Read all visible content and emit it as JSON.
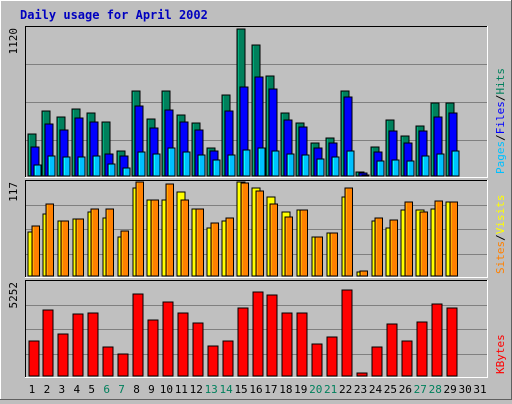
{
  "chart_data": {
    "type": "bar",
    "title": "Daily usage for April 2002",
    "categories": [
      "1",
      "2",
      "3",
      "4",
      "5",
      "6",
      "7",
      "8",
      "9",
      "10",
      "11",
      "12",
      "13",
      "14",
      "15",
      "16",
      "17",
      "18",
      "19",
      "20",
      "21",
      "22",
      "23",
      "24",
      "25",
      "26",
      "27",
      "28",
      "29",
      "30",
      "31"
    ],
    "weekend_days": [
      6,
      7,
      13,
      14,
      20,
      21,
      27,
      28
    ],
    "colors": {
      "title": "#0000c0",
      "weekday_label": "#000000",
      "weekend_label": "#00805c",
      "hits": "#00805c",
      "files": "#0000ff",
      "pages": "#00c0ff",
      "visits": "#ffff00",
      "sites": "#ff8000",
      "kbytes": "#ff0000",
      "plot_bg": "#c0c0c0",
      "grid": "#808080"
    },
    "panels": [
      {
        "id": "hits-files-pages",
        "max_label": "1120",
        "ymax": 1120,
        "legend": [
          {
            "text": "Hits",
            "color": "#00805c"
          },
          {
            "text": "/",
            "color": "#000000"
          },
          {
            "text": "Files",
            "color": "#0000ff"
          },
          {
            "text": "/",
            "color": "#000000"
          },
          {
            "text": "Pages",
            "color": "#00c0ff"
          }
        ],
        "series": [
          {
            "name": "Hits",
            "color": "#00805c",
            "values": [
              320,
              490,
              450,
              510,
              480,
              410,
              190,
              640,
              430,
              640,
              460,
              400,
              210,
              610,
              1110,
              990,
              760,
              480,
              400,
              250,
              290,
              640,
              30,
              220,
              420,
              300,
              380,
              550,
              550,
              0,
              0
            ]
          },
          {
            "name": "Files",
            "color": "#0000ff",
            "values": [
              220,
              390,
              350,
              440,
              410,
              170,
              150,
              530,
              360,
              500,
              410,
              350,
              190,
              490,
              670,
              750,
              660,
              420,
              370,
              210,
              250,
              600,
              25,
              180,
              340,
              250,
              340,
              450,
              480,
              0,
              0
            ]
          },
          {
            "name": "Pages",
            "color": "#00c0ff",
            "values": [
              80,
              150,
              140,
              140,
              150,
              90,
              60,
              180,
              170,
              210,
              180,
              160,
              120,
              160,
              200,
              210,
              190,
              170,
              160,
              130,
              140,
              190,
              10,
              110,
              120,
              110,
              150,
              170,
              190,
              0,
              0
            ]
          }
        ]
      },
      {
        "id": "visits-sites",
        "max_label": "117",
        "ymax": 117,
        "legend": [
          {
            "text": "Visits",
            "color": "#ffff00"
          },
          {
            "text": "/",
            "color": "#000000"
          },
          {
            "text": "Sites",
            "color": "#ff8000"
          }
        ],
        "series": [
          {
            "name": "Visits",
            "color": "#ffff00",
            "values": [
              55,
              77,
              68,
              71,
              80,
              72,
              48,
              110,
              94,
              94,
              104,
              84,
              60,
              68,
              117,
              110,
              98,
              80,
              82,
              48,
              54,
              98,
              5,
              68,
              60,
              82,
              82,
              84,
              92,
              0,
              0
            ]
          },
          {
            "name": "Sites",
            "color": "#ff8000",
            "values": [
              62,
              90,
              68,
              71,
              84,
              84,
              56,
              117,
              94,
              114,
              94,
              84,
              66,
              72,
              116,
              106,
              90,
              74,
              82,
              48,
              54,
              110,
              6,
              72,
              70,
              92,
              80,
              93,
              92,
              0,
              0
            ]
          }
        ]
      },
      {
        "id": "kbytes",
        "max_label": "5252",
        "ymax": 5252,
        "legend": [
          {
            "text": "KBytes",
            "color": "#ff0000"
          }
        ],
        "series": [
          {
            "name": "KBytes",
            "color": "#ff0000",
            "values": [
              1950,
              3680,
              2350,
              3440,
              3520,
              1620,
              1250,
              4580,
              3120,
              4160,
              3520,
              2950,
              1680,
              1960,
              3790,
              4700,
              4530,
              3530,
              3520,
              1780,
              2160,
              4780,
              180,
              1640,
              2880,
              1950,
              3010,
              4020,
              3820,
              0,
              0
            ]
          }
        ]
      }
    ]
  }
}
